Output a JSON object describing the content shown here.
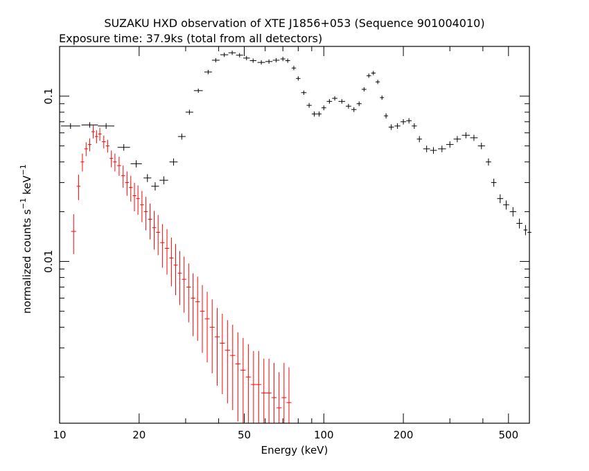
{
  "chart_data": {
    "type": "scatter",
    "title": "SUZAKU HXD observation of XTE J1856+053 (Sequence 901004010)",
    "subtitle": "Exposure time: 37.9ks (total from all detectors)",
    "xlabel": "Energy (keV)",
    "ylabel": {
      "main": "normalized counts s",
      "exp1": "−1",
      "mid": " keV",
      "exp2": "−1"
    },
    "x_scale": "log",
    "y_scale": "log",
    "xlim": [
      10,
      600
    ],
    "ylim": [
      0.00105,
      0.2
    ],
    "x_ticks": [
      {
        "value": 10,
        "label": "10"
      },
      {
        "value": 20,
        "label": "20"
      },
      {
        "value": 50,
        "label": "50"
      },
      {
        "value": 100,
        "label": "100"
      },
      {
        "value": 200,
        "label": "200"
      },
      {
        "value": 500,
        "label": "500"
      }
    ],
    "y_ticks": [
      {
        "value": 0.1,
        "label": "0.1"
      },
      {
        "value": 0.01,
        "label": "0.01"
      }
    ],
    "grid": false,
    "series": [
      {
        "color": "#000000",
        "points": [
          [
            11,
            0.066
          ],
          [
            13,
            0.067
          ],
          [
            15,
            0.066
          ],
          [
            17.5,
            0.049
          ],
          [
            19.5,
            0.039
          ],
          [
            21.5,
            0.032
          ],
          [
            23,
            0.0285
          ],
          [
            24.8,
            0.031
          ],
          [
            27,
            0.04
          ],
          [
            29,
            0.057
          ],
          [
            31,
            0.08
          ],
          [
            33.5,
            0.108
          ],
          [
            36.5,
            0.14
          ],
          [
            39,
            0.165
          ],
          [
            42,
            0.178
          ],
          [
            45,
            0.183
          ],
          [
            48,
            0.177
          ],
          [
            51,
            0.17
          ],
          [
            54,
            0.164
          ],
          [
            58,
            0.16
          ],
          [
            62,
            0.162
          ],
          [
            66,
            0.165
          ],
          [
            70,
            0.168
          ],
          [
            73,
            0.164
          ],
          [
            77,
            0.148
          ],
          [
            80,
            0.128
          ],
          [
            84,
            0.105
          ],
          [
            88,
            0.088
          ],
          [
            92,
            0.078
          ],
          [
            96,
            0.078
          ],
          [
            100,
            0.085
          ],
          [
            105,
            0.093
          ],
          [
            110,
            0.097
          ],
          [
            117,
            0.093
          ],
          [
            124,
            0.087
          ],
          [
            130,
            0.083
          ],
          [
            136,
            0.09
          ],
          [
            142,
            0.11
          ],
          [
            148,
            0.133
          ],
          [
            154,
            0.138
          ],
          [
            160,
            0.122
          ],
          [
            166,
            0.098
          ],
          [
            172,
            0.076
          ],
          [
            180,
            0.065
          ],
          [
            190,
            0.066
          ],
          [
            200,
            0.07
          ],
          [
            210,
            0.071
          ],
          [
            220,
            0.066
          ],
          [
            230,
            0.055
          ],
          [
            245,
            0.048
          ],
          [
            260,
            0.047
          ],
          [
            280,
            0.048
          ],
          [
            300,
            0.051
          ],
          [
            320,
            0.055
          ],
          [
            345,
            0.058
          ],
          [
            370,
            0.056
          ],
          [
            395,
            0.05
          ],
          [
            420,
            0.04
          ],
          [
            440,
            0.03
          ],
          [
            465,
            0.024
          ],
          [
            490,
            0.022
          ],
          [
            520,
            0.02
          ],
          [
            550,
            0.017
          ],
          [
            580,
            0.0155
          ],
          [
            600,
            0.015
          ]
        ]
      },
      {
        "color": "#ff0000",
        "points": [
          [
            11.3,
            0.0152
          ],
          [
            11.8,
            0.0285
          ],
          [
            12.2,
            0.04
          ],
          [
            12.6,
            0.048
          ],
          [
            13.0,
            0.051
          ],
          [
            13.4,
            0.061
          ],
          [
            13.8,
            0.057
          ],
          [
            14.2,
            0.059
          ],
          [
            14.7,
            0.053
          ],
          [
            15.2,
            0.05
          ],
          [
            15.7,
            0.042
          ],
          [
            16.2,
            0.04
          ],
          [
            16.8,
            0.038
          ],
          [
            17.4,
            0.033
          ],
          [
            18.0,
            0.03
          ],
          [
            18.6,
            0.028
          ],
          [
            19.2,
            0.025
          ],
          [
            19.8,
            0.024
          ],
          [
            20.5,
            0.022
          ],
          [
            21.2,
            0.02
          ],
          [
            22.0,
            0.018
          ],
          [
            22.8,
            0.016
          ],
          [
            23.6,
            0.015
          ],
          [
            24.5,
            0.013
          ],
          [
            25.5,
            0.012
          ],
          [
            26.5,
            0.0105
          ],
          [
            27.5,
            0.0095
          ],
          [
            28.5,
            0.0085
          ],
          [
            29.6,
            0.0078
          ],
          [
            30.8,
            0.007
          ],
          [
            32.0,
            0.006
          ],
          [
            33.3,
            0.0057
          ],
          [
            34.7,
            0.005
          ],
          [
            36.2,
            0.0045
          ],
          [
            37.8,
            0.004
          ],
          [
            39.5,
            0.0035
          ],
          [
            41.3,
            0.0032
          ],
          [
            43.2,
            0.0029
          ],
          [
            45.2,
            0.0027
          ],
          [
            47.3,
            0.0024
          ],
          [
            49.5,
            0.0022
          ],
          [
            51.8,
            0.002
          ],
          [
            54.2,
            0.0018
          ],
          [
            56.7,
            0.0018
          ],
          [
            59.3,
            0.0016
          ],
          [
            62.0,
            0.0016
          ],
          [
            64.8,
            0.0015
          ],
          [
            67.7,
            0.0013
          ],
          [
            70.7,
            0.0015
          ],
          [
            73.8,
            0.0014
          ]
        ]
      }
    ]
  }
}
